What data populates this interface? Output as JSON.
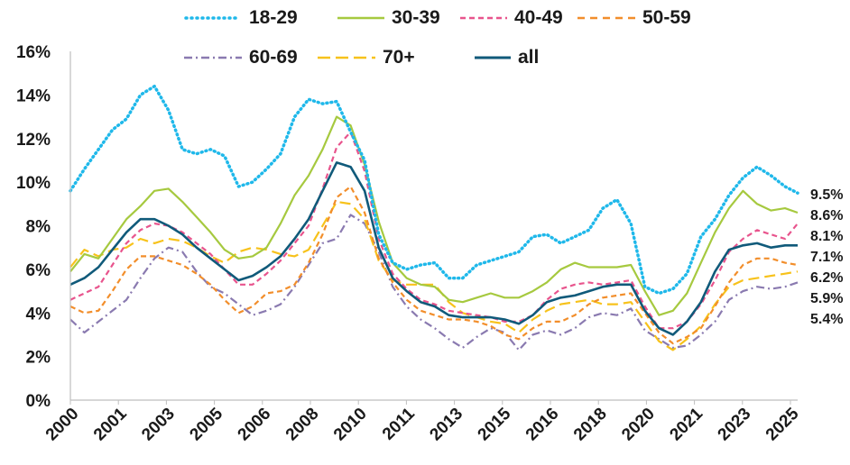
{
  "chart_data": {
    "type": "line",
    "title": "",
    "xlabel": "",
    "ylabel": "",
    "ylim": [
      0,
      16
    ],
    "y_ticks": [
      "0%",
      "2%",
      "4%",
      "6%",
      "8%",
      "10%",
      "12%",
      "14%",
      "16%"
    ],
    "x_tick_labels": [
      "2000",
      "2001",
      "2003",
      "2005",
      "2006",
      "2008",
      "2010",
      "2011",
      "2013",
      "2015",
      "2016",
      "2018",
      "2020",
      "2021",
      "2023",
      "2025"
    ],
    "x_range": [
      2000.0,
      2025.95
    ],
    "grid": false,
    "legend_position": "top",
    "series": [
      {
        "name": "18-29",
        "color": "#1fb8ea",
        "dash": "dotted",
        "end_label": "9.5%",
        "x": [
          2000.0,
          2000.5,
          2001.0,
          2001.5,
          2002.0,
          2002.5,
          2003.0,
          2003.5,
          2004.0,
          2004.5,
          2005.0,
          2005.5,
          2006.0,
          2006.5,
          2007.0,
          2007.5,
          2008.0,
          2008.5,
          2009.0,
          2009.5,
          2010.0,
          2010.5,
          2011.0,
          2011.5,
          2012.0,
          2012.5,
          2013.0,
          2013.5,
          2014.0,
          2014.5,
          2015.0,
          2015.5,
          2016.0,
          2016.5,
          2017.0,
          2017.5,
          2018.0,
          2018.5,
          2019.0,
          2019.5,
          2020.0,
          2020.5,
          2021.0,
          2021.5,
          2022.0,
          2022.5,
          2023.0,
          2023.5,
          2024.0,
          2024.5,
          2025.0,
          2025.5,
          2025.95
        ],
        "values": [
          9.6,
          10.6,
          11.5,
          12.4,
          12.9,
          14.0,
          14.4,
          13.3,
          11.5,
          11.3,
          11.5,
          11.2,
          9.8,
          10.0,
          10.6,
          11.3,
          13.0,
          13.8,
          13.6,
          13.7,
          12.3,
          11.0,
          7.6,
          6.3,
          6.0,
          6.2,
          6.3,
          5.6,
          5.6,
          6.2,
          6.4,
          6.6,
          6.8,
          7.5,
          7.6,
          7.2,
          7.5,
          7.8,
          8.8,
          9.2,
          8.1,
          5.2,
          4.9,
          5.1,
          5.8,
          7.5,
          8.3,
          9.4,
          10.2,
          10.7,
          10.3,
          9.8,
          9.5
        ]
      },
      {
        "name": "30-39",
        "color": "#a6c93f",
        "dash": "solid",
        "end_label": "8.6%",
        "x": [
          2000.0,
          2000.5,
          2001.0,
          2001.5,
          2002.0,
          2002.5,
          2003.0,
          2003.5,
          2004.0,
          2004.5,
          2005.0,
          2005.5,
          2006.0,
          2006.5,
          2007.0,
          2007.5,
          2008.0,
          2008.5,
          2009.0,
          2009.5,
          2010.0,
          2010.5,
          2011.0,
          2011.5,
          2012.0,
          2012.5,
          2013.0,
          2013.5,
          2014.0,
          2014.5,
          2015.0,
          2015.5,
          2016.0,
          2016.5,
          2017.0,
          2017.5,
          2018.0,
          2018.5,
          2019.0,
          2019.5,
          2020.0,
          2020.5,
          2021.0,
          2021.5,
          2022.0,
          2022.5,
          2023.0,
          2023.5,
          2024.0,
          2024.5,
          2025.0,
          2025.5,
          2025.95
        ],
        "values": [
          5.9,
          6.7,
          6.5,
          7.4,
          8.3,
          8.9,
          9.6,
          9.7,
          9.1,
          8.4,
          7.7,
          6.9,
          6.5,
          6.6,
          7.0,
          8.1,
          9.4,
          10.3,
          11.5,
          13.0,
          12.6,
          10.8,
          8.2,
          6.3,
          5.6,
          5.3,
          5.2,
          4.6,
          4.5,
          4.7,
          4.9,
          4.7,
          4.7,
          5.0,
          5.4,
          6.0,
          6.3,
          6.1,
          6.1,
          6.1,
          6.2,
          5.0,
          3.9,
          4.1,
          4.9,
          6.3,
          7.7,
          8.8,
          9.6,
          9.0,
          8.7,
          8.8,
          8.6
        ]
      },
      {
        "name": "40-49",
        "color": "#e8548d",
        "dash": "dashed",
        "end_label": "8.1%",
        "x": [
          2000.0,
          2000.5,
          2001.0,
          2001.5,
          2002.0,
          2002.5,
          2003.0,
          2003.5,
          2004.0,
          2004.5,
          2005.0,
          2005.5,
          2006.0,
          2006.5,
          2007.0,
          2007.5,
          2008.0,
          2008.5,
          2009.0,
          2009.5,
          2010.0,
          2010.5,
          2011.0,
          2011.5,
          2012.0,
          2012.5,
          2013.0,
          2013.5,
          2014.0,
          2014.5,
          2015.0,
          2015.5,
          2016.0,
          2016.5,
          2017.0,
          2017.5,
          2018.0,
          2018.5,
          2019.0,
          2019.5,
          2020.0,
          2020.5,
          2021.0,
          2021.5,
          2022.0,
          2022.5,
          2023.0,
          2023.5,
          2024.0,
          2024.5,
          2025.0,
          2025.5,
          2025.95
        ],
        "values": [
          4.6,
          4.9,
          5.2,
          6.2,
          7.2,
          7.8,
          8.1,
          8.0,
          7.7,
          7.2,
          6.7,
          6.0,
          5.3,
          5.3,
          5.8,
          6.4,
          7.2,
          8.0,
          9.7,
          11.6,
          12.3,
          10.5,
          7.4,
          5.8,
          5.1,
          4.6,
          4.4,
          4.1,
          4.0,
          3.9,
          3.8,
          3.6,
          3.6,
          3.9,
          4.6,
          5.1,
          5.3,
          5.4,
          5.3,
          5.4,
          5.5,
          4.3,
          3.3,
          3.3,
          3.6,
          4.4,
          5.5,
          6.8,
          7.4,
          7.8,
          7.6,
          7.4,
          8.1
        ]
      },
      {
        "name": "50-59",
        "color": "#f28e2b",
        "dash": "dashed",
        "end_label": "6.2%",
        "x": [
          2000.0,
          2000.5,
          2001.0,
          2001.5,
          2002.0,
          2002.5,
          2003.0,
          2003.5,
          2004.0,
          2004.5,
          2005.0,
          2005.5,
          2006.0,
          2006.5,
          2007.0,
          2007.5,
          2008.0,
          2008.5,
          2009.0,
          2009.5,
          2010.0,
          2010.5,
          2011.0,
          2011.5,
          2012.0,
          2012.5,
          2013.0,
          2013.5,
          2014.0,
          2014.5,
          2015.0,
          2015.5,
          2016.0,
          2016.5,
          2017.0,
          2017.5,
          2018.0,
          2018.5,
          2019.0,
          2019.5,
          2020.0,
          2020.5,
          2021.0,
          2021.5,
          2022.0,
          2022.5,
          2023.0,
          2023.5,
          2024.0,
          2024.5,
          2025.0,
          2025.5,
          2025.95
        ],
        "values": [
          4.3,
          4.0,
          4.1,
          5.0,
          6.0,
          6.6,
          6.6,
          6.4,
          6.2,
          5.8,
          5.3,
          4.6,
          4.0,
          4.3,
          4.9,
          5.0,
          5.3,
          6.3,
          7.6,
          9.3,
          9.8,
          8.6,
          6.5,
          5.4,
          4.6,
          4.1,
          3.9,
          3.7,
          3.7,
          3.6,
          3.4,
          3.0,
          2.8,
          3.3,
          3.6,
          3.6,
          3.9,
          4.4,
          4.7,
          4.8,
          4.9,
          4.0,
          3.1,
          2.6,
          2.9,
          3.3,
          4.3,
          5.4,
          6.2,
          6.5,
          6.5,
          6.3,
          6.2
        ]
      },
      {
        "name": "60-69",
        "color": "#8a7ab0",
        "dash": "dashdot",
        "end_label": "5.4%",
        "x": [
          2000.0,
          2000.5,
          2001.0,
          2001.5,
          2002.0,
          2002.5,
          2003.0,
          2003.5,
          2004.0,
          2004.5,
          2005.0,
          2005.5,
          2006.0,
          2006.5,
          2007.0,
          2007.5,
          2008.0,
          2008.5,
          2009.0,
          2009.5,
          2010.0,
          2010.5,
          2011.0,
          2011.5,
          2012.0,
          2012.5,
          2013.0,
          2013.5,
          2014.0,
          2014.5,
          2015.0,
          2015.5,
          2016.0,
          2016.5,
          2017.0,
          2017.5,
          2018.0,
          2018.5,
          2019.0,
          2019.5,
          2020.0,
          2020.5,
          2021.0,
          2021.5,
          2022.0,
          2022.5,
          2023.0,
          2023.5,
          2024.0,
          2024.5,
          2025.0,
          2025.5,
          2025.95
        ],
        "values": [
          3.7,
          3.1,
          3.6,
          4.1,
          4.6,
          5.6,
          6.5,
          7.0,
          6.8,
          5.9,
          5.2,
          4.9,
          4.4,
          3.9,
          4.1,
          4.4,
          5.2,
          6.2,
          7.2,
          7.4,
          8.5,
          8.1,
          6.8,
          5.2,
          4.3,
          3.7,
          3.3,
          2.8,
          2.4,
          2.9,
          3.3,
          3.1,
          2.3,
          3.0,
          3.2,
          3.0,
          3.3,
          3.8,
          4.0,
          3.9,
          4.2,
          3.2,
          2.8,
          2.4,
          2.5,
          3.0,
          3.6,
          4.6,
          5.0,
          5.2,
          5.1,
          5.2,
          5.4
        ]
      },
      {
        "name": "70+",
        "color": "#f7c21b",
        "dash": "longdash",
        "end_label": "5.9%",
        "x": [
          2000.0,
          2000.5,
          2001.0,
          2001.5,
          2002.0,
          2002.5,
          2003.0,
          2003.5,
          2004.0,
          2004.5,
          2005.0,
          2005.5,
          2006.0,
          2006.5,
          2007.0,
          2007.5,
          2008.0,
          2008.5,
          2009.0,
          2009.5,
          2010.0,
          2010.5,
          2011.0,
          2011.5,
          2012.0,
          2012.5,
          2013.0,
          2013.5,
          2014.0,
          2014.5,
          2015.0,
          2015.5,
          2016.0,
          2016.5,
          2017.0,
          2017.5,
          2018.0,
          2018.5,
          2019.0,
          2019.5,
          2020.0,
          2020.5,
          2021.0,
          2021.5,
          2022.0,
          2022.5,
          2023.0,
          2023.5,
          2024.0,
          2024.5,
          2025.0,
          2025.5,
          2025.95
        ],
        "values": [
          6.1,
          6.9,
          6.6,
          6.9,
          7.0,
          7.4,
          7.2,
          7.4,
          7.3,
          7.0,
          6.6,
          6.3,
          6.8,
          7.0,
          6.9,
          6.7,
          6.6,
          6.9,
          8.0,
          9.1,
          9.0,
          8.3,
          6.4,
          5.5,
          5.3,
          5.3,
          5.3,
          4.5,
          4.0,
          3.8,
          3.6,
          3.5,
          3.1,
          3.7,
          4.1,
          4.4,
          4.5,
          4.6,
          4.4,
          4.4,
          4.5,
          3.6,
          2.7,
          2.3,
          2.8,
          3.4,
          4.4,
          5.2,
          5.5,
          5.6,
          5.7,
          5.8,
          5.9
        ]
      },
      {
        "name": "all",
        "color": "#105a7a",
        "dash": "solid",
        "end_label": "7.1%",
        "x": [
          2000.0,
          2000.5,
          2001.0,
          2001.5,
          2002.0,
          2002.5,
          2003.0,
          2003.5,
          2004.0,
          2004.5,
          2005.0,
          2005.5,
          2006.0,
          2006.5,
          2007.0,
          2007.5,
          2008.0,
          2008.5,
          2009.0,
          2009.5,
          2010.0,
          2010.5,
          2011.0,
          2011.5,
          2012.0,
          2012.5,
          2013.0,
          2013.5,
          2014.0,
          2014.5,
          2015.0,
          2015.5,
          2016.0,
          2016.5,
          2017.0,
          2017.5,
          2018.0,
          2018.5,
          2019.0,
          2019.5,
          2020.0,
          2020.5,
          2021.0,
          2021.5,
          2022.0,
          2022.5,
          2023.0,
          2023.5,
          2024.0,
          2024.5,
          2025.0,
          2025.5,
          2025.95
        ],
        "values": [
          5.3,
          5.6,
          6.1,
          6.9,
          7.7,
          8.3,
          8.3,
          8.0,
          7.6,
          7.0,
          6.5,
          6.0,
          5.5,
          5.7,
          6.1,
          6.6,
          7.4,
          8.3,
          9.6,
          10.9,
          10.7,
          9.6,
          7.0,
          5.6,
          5.0,
          4.5,
          4.3,
          3.9,
          3.8,
          3.8,
          3.8,
          3.7,
          3.5,
          3.9,
          4.5,
          4.7,
          4.8,
          5.0,
          5.2,
          5.3,
          5.3,
          4.1,
          3.3,
          3.0,
          3.6,
          4.5,
          5.9,
          6.9,
          7.1,
          7.2,
          7.0,
          7.1,
          7.1
        ]
      }
    ]
  }
}
